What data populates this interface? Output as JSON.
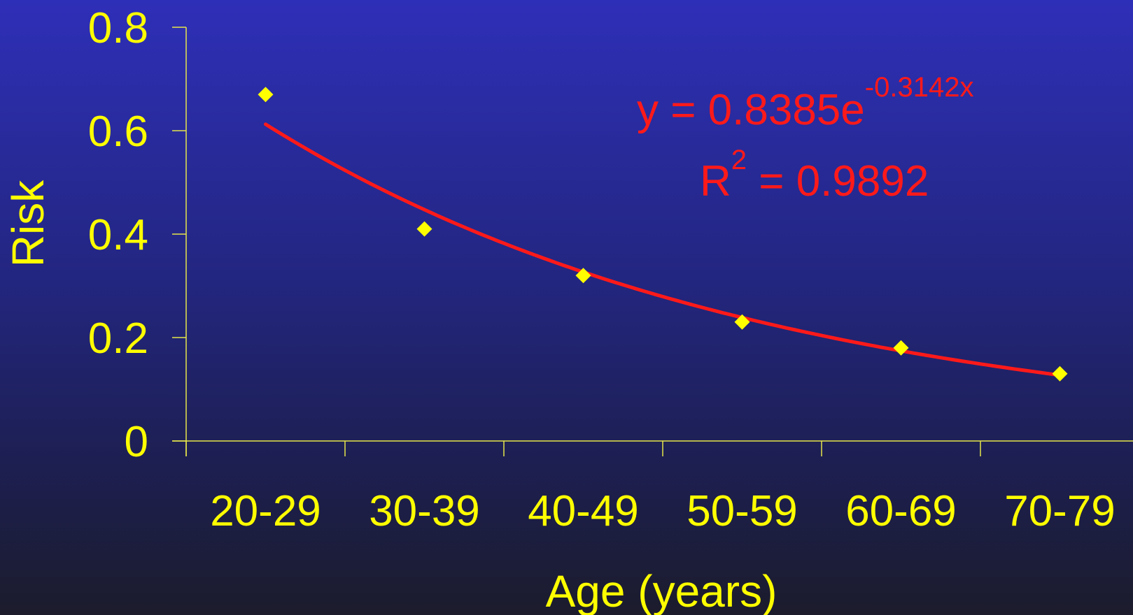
{
  "chart_data": {
    "type": "scatter",
    "categories": [
      "20-29",
      "30-39",
      "40-49",
      "50-59",
      "60-69",
      "70-79"
    ],
    "values": [
      0.67,
      0.41,
      0.32,
      0.23,
      0.18,
      0.13
    ],
    "xlabel": "Age (years)",
    "ylabel": "Risk",
    "ylim": [
      0,
      0.8
    ],
    "yticks": [
      "0",
      "0.2",
      "0.4",
      "0.6",
      "0.8"
    ],
    "trendline": {
      "type": "exponential",
      "a": 0.8385,
      "b": -0.3142,
      "equation_main": "y = 0.8385e",
      "equation_exp": "-0.3142x",
      "r2_prefix": "R",
      "r2_sup": "2",
      "r2_value": " = 0.9892"
    },
    "grid": false,
    "legend": "none",
    "colors": {
      "text": "#ffff00",
      "axis": "#e6e64a",
      "markers": "#ffff00",
      "trendline": "#ff1a1a"
    }
  }
}
